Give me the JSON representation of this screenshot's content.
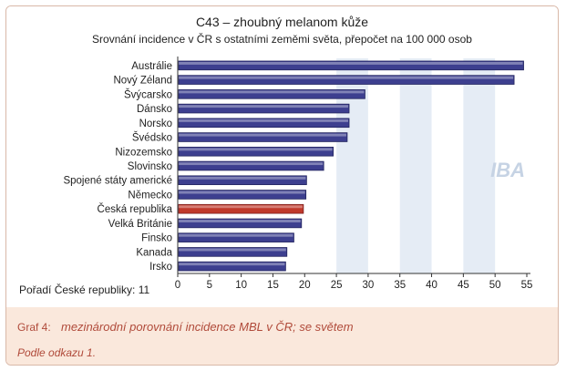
{
  "chart_data": {
    "type": "bar",
    "orientation": "horizontal",
    "title": "C43 – zhoubný melanom kůže",
    "subtitle": "Srovnání incidence v ČR s ostatními zeměmi světa, přepočet na 100 000 osob",
    "categories": [
      "Austrálie",
      "Nový Zéland",
      "Švýcarsko",
      "Dánsko",
      "Norsko",
      "Švédsko",
      "Nizozemsko",
      "Slovinsko",
      "Spojené státy americké",
      "Německo",
      "Česká republika",
      "Velká Británie",
      "Finsko",
      "Kanada",
      "Irsko"
    ],
    "values": [
      54.5,
      53,
      29.5,
      27,
      27,
      26.7,
      24.5,
      23,
      20.3,
      20.2,
      19.8,
      19.5,
      18.3,
      17.2,
      17
    ],
    "highlight": "Česká republika",
    "xlim": [
      0,
      55
    ],
    "xticks": [
      0,
      5,
      10,
      15,
      20,
      25,
      30,
      35,
      40,
      45,
      50,
      55
    ],
    "colors": {
      "bar": "#3d3f8f",
      "highlight": "#c0392b",
      "band": "#dce6f2"
    },
    "watermark": "IBA"
  },
  "rank_note": "Pořadí České republiky: 11",
  "caption": {
    "prefix": "Graf 4:",
    "text": "mezinárodní porovnání incidence MBL v ČR; se světem",
    "source": "Podle odkazu 1."
  }
}
